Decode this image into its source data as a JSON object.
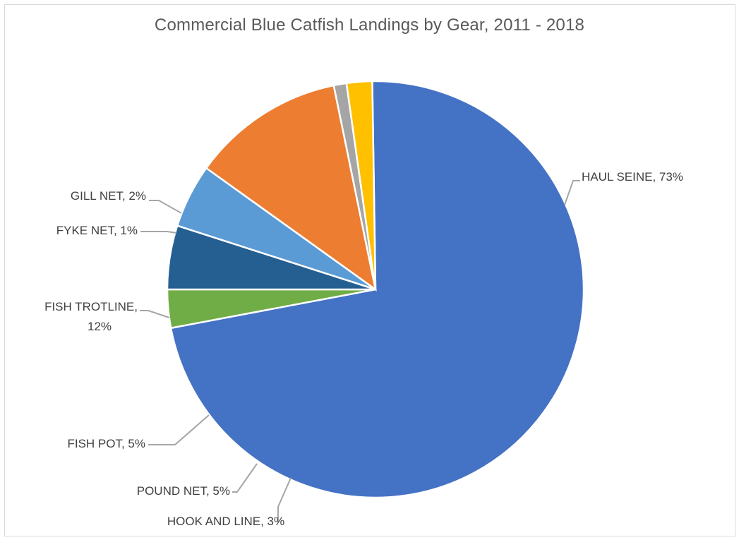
{
  "chart_data": {
    "type": "pie",
    "title": "Commercial Blue Catfish Landings by Gear, 2011 - 2018",
    "slices": [
      {
        "label": "HAUL SEINE",
        "value": 73,
        "value_label": "73%",
        "color": "#4472c4"
      },
      {
        "label": "HOOK AND LINE",
        "value": 3,
        "value_label": "3%",
        "color": "#70ad47"
      },
      {
        "label": "POUND NET",
        "value": 5,
        "value_label": "5%",
        "color": "#255e91"
      },
      {
        "label": "FISH POT",
        "value": 5,
        "value_label": "5%",
        "color": "#5b9bd5"
      },
      {
        "label": "FISH TROTLINE",
        "value": 12,
        "value_label": "12%",
        "color": "#ed7d31"
      },
      {
        "label": "FYKE NET",
        "value": 1,
        "value_label": "1%",
        "color": "#a5a5a5"
      },
      {
        "label": "GILL NET",
        "value": 2,
        "value_label": "2%",
        "color": "#ffc000"
      }
    ],
    "legend": "none",
    "data_labels": "outside with leader lines"
  }
}
